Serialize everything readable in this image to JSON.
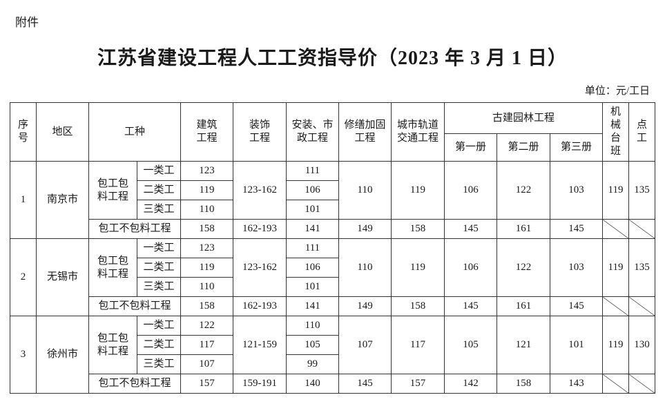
{
  "attachment_label": "附件",
  "title": "江苏省建设工程人工工资指导价（2023 年 3 月 1 日）",
  "unit": "单位：元/工日",
  "headers": {
    "seq": "序号",
    "region": "地区",
    "work_type": "工种",
    "building": "建筑工程",
    "decoration": "装饰工程",
    "install": "安装、市政工程",
    "repair": "修缮加固工程",
    "rail": "城市轨道交通工程",
    "ancient": "古建园林工程",
    "vol1": "第一册",
    "vol2": "第二册",
    "vol3": "第三册",
    "machine": "机械台班",
    "spot": "点工"
  },
  "labels": {
    "contract_with_material": "包工包料工程",
    "contract_without_material": "包工不包料工程",
    "grades": [
      "一类工",
      "二类工",
      "三类工"
    ]
  },
  "rows": [
    {
      "seq": "1",
      "region": "南京市",
      "building": [
        "123",
        "119",
        "110"
      ],
      "decoration": "123-162",
      "install": [
        "111",
        "106",
        "101"
      ],
      "repair": "110",
      "rail": "119",
      "vol1": "106",
      "vol2": "122",
      "vol3": "103",
      "machine": "119",
      "spot": "135",
      "no_material": {
        "building": "158",
        "decoration": "162-193",
        "install": "141",
        "repair": "149",
        "rail": "158",
        "vol1": "145",
        "vol2": "161",
        "vol3": "145"
      }
    },
    {
      "seq": "2",
      "region": "无锡市",
      "building": [
        "123",
        "119",
        "110"
      ],
      "decoration": "123-162",
      "install": [
        "111",
        "106",
        "101"
      ],
      "repair": "110",
      "rail": "119",
      "vol1": "106",
      "vol2": "122",
      "vol3": "103",
      "machine": "119",
      "spot": "135",
      "no_material": {
        "building": "158",
        "decoration": "162-193",
        "install": "141",
        "repair": "149",
        "rail": "158",
        "vol1": "145",
        "vol2": "161",
        "vol3": "145"
      }
    },
    {
      "seq": "3",
      "region": "徐州市",
      "building": [
        "122",
        "117",
        "107"
      ],
      "decoration": "121-159",
      "install": [
        "110",
        "105",
        "99"
      ],
      "repair": "107",
      "rail": "117",
      "vol1": "105",
      "vol2": "121",
      "vol3": "101",
      "machine": "119",
      "spot": "130",
      "no_material": {
        "building": "157",
        "decoration": "159-191",
        "install": "140",
        "repair": "145",
        "rail": "157",
        "vol1": "142",
        "vol2": "158",
        "vol3": "143"
      }
    }
  ]
}
